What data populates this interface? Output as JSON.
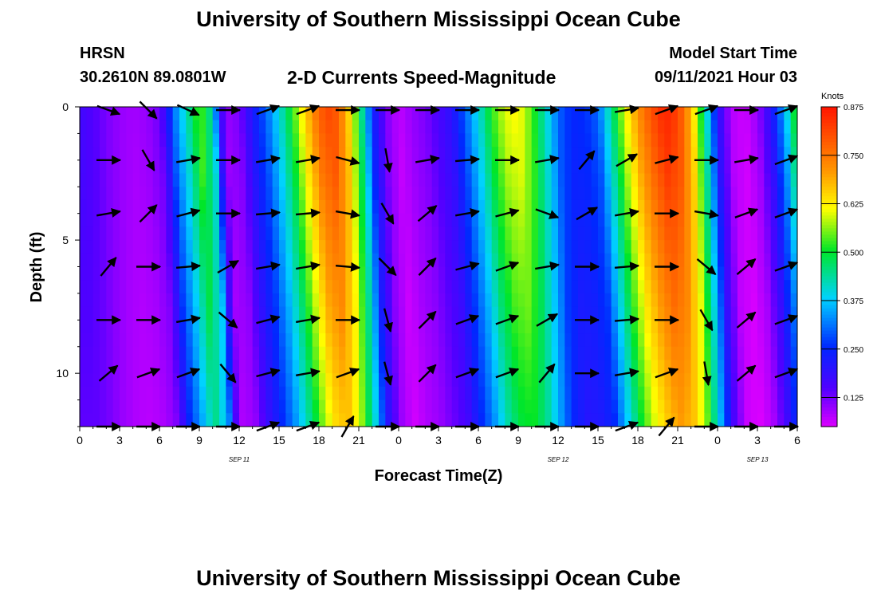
{
  "page": {
    "title": "University of Southern Mississippi Ocean Cube",
    "footer_title": "University of Southern Mississippi Ocean Cube"
  },
  "header": {
    "station": "HRSN",
    "coords": "30.2610N  89.0801W",
    "plot_title": "2-D Currents Speed-Magnitude",
    "model_start_label": "Model Start Time",
    "model_start_value": "09/11/2021 Hour 03"
  },
  "chart_data": {
    "type": "heatmap",
    "title": "2-D Currents Speed-Magnitude",
    "xlabel": "Forecast Time(Z)",
    "ylabel": "Depth (ft)",
    "xlim": [
      0,
      54
    ],
    "ylim": [
      0,
      12
    ],
    "y_inverted": true,
    "x_ticks": [
      0,
      3,
      6,
      9,
      12,
      15,
      18,
      21,
      24,
      27,
      30,
      33,
      36,
      39,
      42,
      45,
      48,
      51,
      54
    ],
    "x_tick_labels": [
      "0",
      "3",
      "6",
      "9",
      "12",
      "15",
      "18",
      "21",
      "0",
      "3",
      "6",
      "9",
      "12",
      "15",
      "18",
      "21",
      "0",
      "3",
      "6"
    ],
    "y_ticks": [
      0,
      5,
      10
    ],
    "y_tick_labels": [
      "0",
      "5",
      "10"
    ],
    "date_labels": [
      {
        "x": 12,
        "text": "SEP 11"
      },
      {
        "x": 36,
        "text": "SEP 12"
      },
      {
        "x": 51,
        "text": "SEP 13"
      }
    ],
    "colorbar": {
      "unit": "Knots",
      "min": 0.05,
      "max": 0.875,
      "ticks": [
        0.125,
        0.25,
        0.375,
        0.5,
        0.625,
        0.75,
        0.875
      ],
      "tick_labels": [
        "0.125",
        "0.250",
        "0.375",
        "0.500",
        "0.625",
        "0.750",
        "0.875"
      ]
    },
    "speed_profile_hours": [
      0,
      1,
      2,
      3,
      4,
      5,
      6,
      6.5,
      7,
      8,
      9,
      10,
      10.5,
      11,
      12,
      13,
      14,
      15,
      16,
      17,
      18,
      19,
      20,
      21,
      22,
      23,
      24,
      25,
      26,
      27,
      28,
      29,
      30,
      31,
      32,
      33,
      34,
      35,
      36,
      37,
      38,
      39,
      40,
      41,
      42,
      43,
      44,
      45,
      46,
      47,
      48,
      49,
      50,
      51,
      52,
      53,
      54
    ],
    "speed_profile_knots": [
      0.17,
      0.15,
      0.12,
      0.1,
      0.09,
      0.1,
      0.13,
      0.2,
      0.3,
      0.42,
      0.55,
      0.42,
      0.2,
      0.1,
      0.12,
      0.22,
      0.3,
      0.4,
      0.52,
      0.66,
      0.78,
      0.82,
      0.7,
      0.5,
      0.25,
      0.12,
      0.07,
      0.1,
      0.12,
      0.16,
      0.2,
      0.3,
      0.4,
      0.52,
      0.6,
      0.62,
      0.54,
      0.42,
      0.3,
      0.25,
      0.26,
      0.3,
      0.45,
      0.6,
      0.72,
      0.8,
      0.86,
      0.82,
      0.68,
      0.45,
      0.2,
      0.08,
      0.06,
      0.1,
      0.2,
      0.35,
      0.55
    ],
    "vector_rows_depth_ft": [
      0,
      2,
      4,
      6,
      8,
      10,
      12
    ],
    "vector_cols_hours": [
      3,
      6,
      9,
      12,
      15,
      18,
      21,
      24,
      27,
      30,
      33,
      36,
      39,
      42,
      45,
      48,
      51,
      54
    ],
    "vector_angles_deg": [
      [
        -20,
        -45,
        -25,
        0,
        20,
        20,
        0,
        0,
        0,
        0,
        0,
        0,
        0,
        10,
        20,
        20,
        0,
        20
      ],
      [
        0,
        -60,
        10,
        0,
        10,
        10,
        -15,
        -80,
        10,
        5,
        0,
        10,
        50,
        30,
        15,
        0,
        10,
        20
      ],
      [
        10,
        45,
        15,
        0,
        5,
        5,
        -10,
        -60,
        40,
        10,
        15,
        -20,
        30,
        10,
        0,
        -10,
        20,
        20
      ],
      [
        50,
        0,
        5,
        30,
        10,
        10,
        -5,
        -45,
        45,
        15,
        20,
        10,
        0,
        5,
        0,
        -40,
        40,
        20
      ],
      [
        0,
        0,
        10,
        -40,
        15,
        10,
        0,
        -75,
        45,
        20,
        20,
        30,
        0,
        5,
        0,
        -60,
        40,
        20
      ],
      [
        40,
        20,
        20,
        -50,
        15,
        10,
        20,
        -75,
        45,
        20,
        20,
        50,
        0,
        10,
        20,
        -80,
        40,
        20
      ],
      [
        0,
        0,
        0,
        0,
        20,
        20,
        60,
        0,
        0,
        0,
        0,
        0,
        0,
        20,
        50,
        0,
        0,
        0
      ]
    ]
  }
}
